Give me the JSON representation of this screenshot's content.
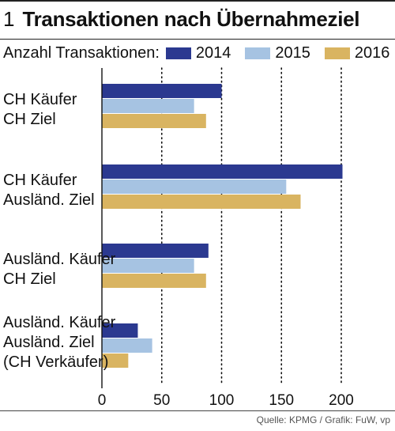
{
  "header": {
    "number": "1",
    "title": "Transaktionen nach Übernahmeziel"
  },
  "legend": {
    "label": "Anzahl Transaktionen:"
  },
  "source": "Quelle: KPMG / Grafik: FuW, vp",
  "colors": {
    "s2014": "#2b3990",
    "s2015": "#a6c3e2",
    "s2016": "#d9b461"
  },
  "chart_data": {
    "type": "bar",
    "orientation": "horizontal",
    "title": "Transaktionen nach Übernahmeziel",
    "categories": [
      [
        "CH Käufer",
        "CH Ziel"
      ],
      [
        "CH Käufer",
        "Ausländ. Ziel"
      ],
      [
        "Ausländ. Käufer",
        "CH Ziel"
      ],
      [
        "Ausländ. Käufer",
        "Ausländ. Ziel",
        "(CH Verkäufer)"
      ]
    ],
    "series": [
      {
        "name": "2014",
        "values": [
          100,
          201,
          89,
          30
        ]
      },
      {
        "name": "2015",
        "values": [
          77,
          154,
          77,
          42
        ]
      },
      {
        "name": "2016",
        "values": [
          87,
          166,
          87,
          22
        ]
      }
    ],
    "xlim": [
      0,
      200
    ],
    "xticks": [
      0,
      50,
      100,
      150,
      200
    ],
    "grid": "vertical-dotted",
    "legend_position": "top-left"
  }
}
